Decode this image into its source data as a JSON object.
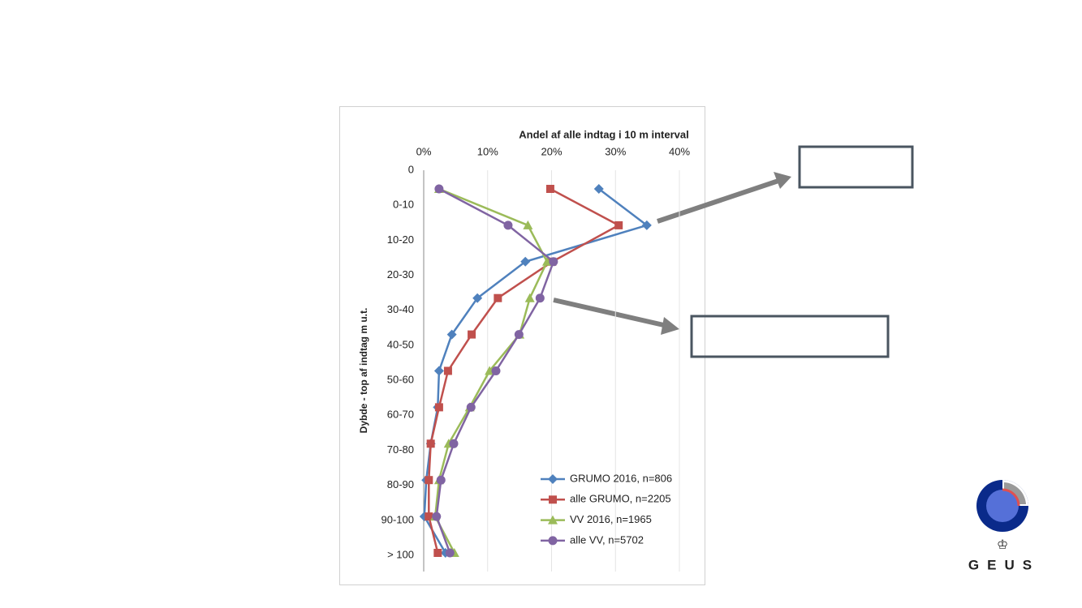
{
  "chart_data": {
    "type": "line",
    "x_axis_title": "Andel af alle indtag i 10 m interval",
    "y_axis_title": "Dybde - top af indtag m u.t.",
    "categories": [
      "0",
      "0-10",
      "10-20",
      "20-30",
      "30-40",
      "40-50",
      "50-60",
      "60-70",
      "70-80",
      "80-90",
      "90-100",
      "> 100"
    ],
    "xlim": [
      0,
      40
    ],
    "xticks": [
      {
        "value": 0,
        "label": "0%"
      },
      {
        "value": 10,
        "label": "10%"
      },
      {
        "value": 20,
        "label": "20%"
      },
      {
        "value": 30,
        "label": "30%"
      },
      {
        "value": 40,
        "label": "40%"
      }
    ],
    "grid": true,
    "legend": "lower right",
    "series": [
      {
        "name": "GRUMO 2016, n=806",
        "color": "#4f81bd",
        "marker": "diamond",
        "values": [
          null,
          27.4,
          34.9,
          15.9,
          8.4,
          4.4,
          2.4,
          2.2,
          1.1,
          0.4,
          0.1,
          3.4
        ]
      },
      {
        "name": "alle GRUMO, n=2205",
        "color": "#c0504d",
        "marker": "square",
        "values": [
          null,
          19.8,
          30.5,
          20.1,
          11.6,
          7.5,
          3.8,
          2.4,
          1.1,
          0.8,
          0.8,
          2.2
        ]
      },
      {
        "name": "VV 2016, n=1965",
        "color": "#9bbb59",
        "marker": "triangle",
        "values": [
          null,
          2.4,
          16.3,
          19.3,
          16.6,
          15.0,
          10.3,
          7.2,
          3.9,
          2.4,
          1.8,
          4.8
        ]
      },
      {
        "name": "alle VV, n=5702",
        "color": "#8064a2",
        "marker": "circle",
        "values": [
          null,
          2.4,
          13.2,
          20.3,
          18.2,
          14.9,
          11.3,
          7.4,
          4.7,
          2.7,
          2.0,
          4.1
        ]
      }
    ]
  },
  "logo": "GEUS"
}
